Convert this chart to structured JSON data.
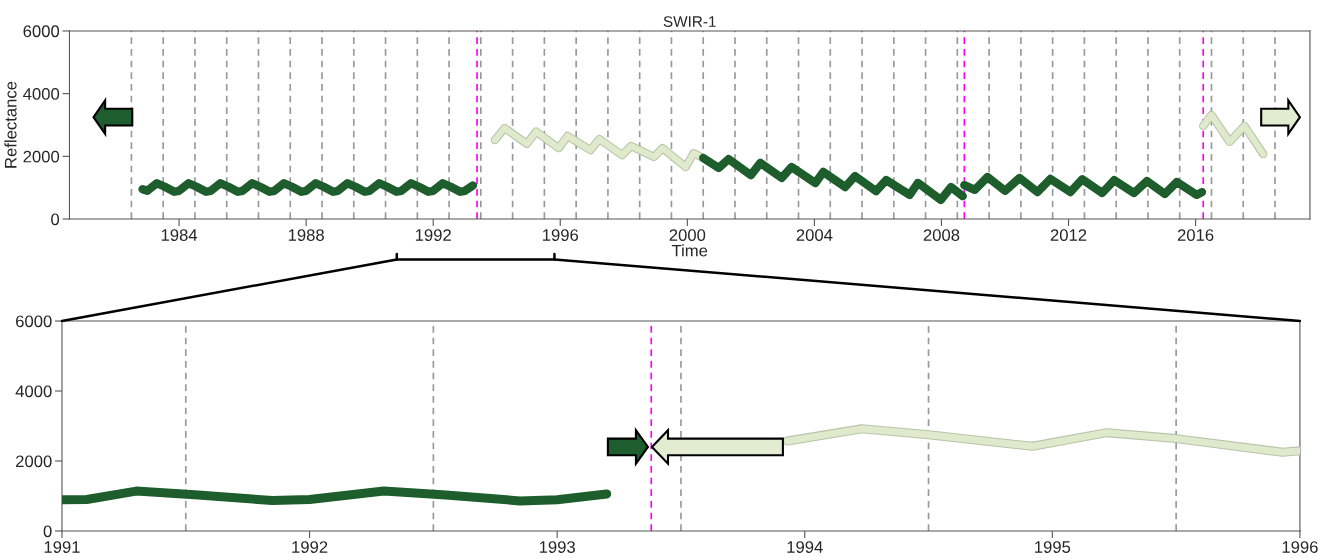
{
  "chart_data": [
    {
      "type": "line",
      "title": "SWIR-1",
      "xlabel": "Time",
      "ylabel": "Reflectance",
      "xlim": [
        1980.55,
        2019.6
      ],
      "xticks": [
        1984,
        1988,
        1992,
        1996,
        2000,
        2004,
        2008,
        2012,
        2016
      ],
      "ylim": [
        0,
        6000
      ],
      "yticks": [
        0,
        2000,
        4000,
        6000
      ],
      "grid": false,
      "legend": false,
      "marker": "none",
      "line_style": "solid",
      "series": [
        {
          "color": "#1d5e2c",
          "x": [
            1982.85,
            1983.0,
            1983.3,
            1983.55,
            1983.85,
            1984.0,
            1984.3,
            1984.55,
            1984.85,
            1985.0,
            1985.3,
            1985.55,
            1985.85,
            1986.0,
            1986.3,
            1986.55,
            1986.85,
            1987.0,
            1987.3,
            1987.55,
            1987.85,
            1988.0,
            1988.3,
            1988.55,
            1988.85,
            1989.0,
            1989.3,
            1989.55,
            1989.85,
            1990.0,
            1990.3,
            1990.55,
            1990.85,
            1991.0,
            1991.3,
            1991.55,
            1991.85,
            1992.0,
            1992.3,
            1992.55,
            1992.85,
            1993.0,
            1993.25
          ],
          "values": [
            950,
            900,
            1140,
            1030,
            870,
            900,
            1140,
            1030,
            870,
            900,
            1140,
            1030,
            870,
            900,
            1140,
            1030,
            870,
            900,
            1140,
            1030,
            870,
            900,
            1140,
            1030,
            870,
            900,
            1140,
            1030,
            870,
            900,
            1140,
            1030,
            870,
            900,
            1140,
            1030,
            870,
            900,
            1140,
            1030,
            870,
            900,
            1070
          ]
        },
        {
          "color": "#dfe9cc",
          "x": [
            1993.94,
            1994.25,
            1994.95,
            1995.24,
            1995.95,
            1996.23,
            1996.95,
            1997.23,
            1997.95,
            1998.23,
            1998.95,
            1999.22,
            1999.95,
            2000.2,
            2000.5
          ],
          "values": [
            2520,
            2900,
            2400,
            2790,
            2260,
            2650,
            2200,
            2550,
            2040,
            2330,
            1980,
            2260,
            1660,
            2100,
            1950
          ]
        },
        {
          "color": "#1d5e2c",
          "x": [
            2000.5,
            2000.99,
            2001.3,
            2002.0,
            2002.3,
            2002.97,
            2003.28,
            2004.03,
            2004.28,
            2004.97,
            2005.28,
            2005.94,
            2006.26,
            2007.0,
            2007.26,
            2007.98,
            2008.3,
            2008.67
          ],
          "values": [
            1950,
            1630,
            1910,
            1400,
            1790,
            1310,
            1660,
            1150,
            1500,
            1020,
            1370,
            890,
            1240,
            770,
            1150,
            610,
            1020,
            730
          ]
        },
        {
          "color": "#1d5e2c",
          "x": [
            2008.72,
            2009.05,
            2009.45,
            2010.0,
            2010.46,
            2011.02,
            2011.43,
            2012.06,
            2012.43,
            2013.06,
            2013.44,
            2014.06,
            2014.47,
            2015.03,
            2015.41,
            2016.04,
            2016.2
          ],
          "values": [
            1080,
            930,
            1340,
            900,
            1310,
            860,
            1280,
            860,
            1270,
            830,
            1240,
            830,
            1210,
            800,
            1180,
            770,
            860
          ]
        },
        {
          "color": "#dfe9cc",
          "x": [
            2016.24,
            2016.5,
            2017.07,
            2017.54,
            2018.13
          ],
          "values": [
            2970,
            3320,
            2460,
            2970,
            2070
          ]
        }
      ],
      "ref_lines": [
        {
          "axis": "x",
          "value": 1982.5,
          "color": "#999999",
          "line_style": "dashed"
        },
        {
          "axis": "x",
          "value": 1983.5,
          "color": "#999999",
          "line_style": "dashed"
        },
        {
          "axis": "x",
          "value": 1984.5,
          "color": "#999999",
          "line_style": "dashed"
        },
        {
          "axis": "x",
          "value": 1985.5,
          "color": "#999999",
          "line_style": "dashed"
        },
        {
          "axis": "x",
          "value": 1986.5,
          "color": "#999999",
          "line_style": "dashed"
        },
        {
          "axis": "x",
          "value": 1987.5,
          "color": "#999999",
          "line_style": "dashed"
        },
        {
          "axis": "x",
          "value": 1988.5,
          "color": "#999999",
          "line_style": "dashed"
        },
        {
          "axis": "x",
          "value": 1989.5,
          "color": "#999999",
          "line_style": "dashed"
        },
        {
          "axis": "x",
          "value": 1990.5,
          "color": "#999999",
          "line_style": "dashed"
        },
        {
          "axis": "x",
          "value": 1991.5,
          "color": "#999999",
          "line_style": "dashed"
        },
        {
          "axis": "x",
          "value": 1992.5,
          "color": "#999999",
          "line_style": "dashed"
        },
        {
          "axis": "x",
          "value": 1993.5,
          "color": "#999999",
          "line_style": "dashed"
        },
        {
          "axis": "x",
          "value": 1994.5,
          "color": "#999999",
          "line_style": "dashed"
        },
        {
          "axis": "x",
          "value": 1995.5,
          "color": "#999999",
          "line_style": "dashed"
        },
        {
          "axis": "x",
          "value": 1996.5,
          "color": "#999999",
          "line_style": "dashed"
        },
        {
          "axis": "x",
          "value": 1997.5,
          "color": "#999999",
          "line_style": "dashed"
        },
        {
          "axis": "x",
          "value": 1998.5,
          "color": "#999999",
          "line_style": "dashed"
        },
        {
          "axis": "x",
          "value": 1999.5,
          "color": "#999999",
          "line_style": "dashed"
        },
        {
          "axis": "x",
          "value": 2000.5,
          "color": "#999999",
          "line_style": "dashed"
        },
        {
          "axis": "x",
          "value": 2001.5,
          "color": "#999999",
          "line_style": "dashed"
        },
        {
          "axis": "x",
          "value": 2002.5,
          "color": "#999999",
          "line_style": "dashed"
        },
        {
          "axis": "x",
          "value": 2003.5,
          "color": "#999999",
          "line_style": "dashed"
        },
        {
          "axis": "x",
          "value": 2004.5,
          "color": "#999999",
          "line_style": "dashed"
        },
        {
          "axis": "x",
          "value": 2005.5,
          "color": "#999999",
          "line_style": "dashed"
        },
        {
          "axis": "x",
          "value": 2006.5,
          "color": "#999999",
          "line_style": "dashed"
        },
        {
          "axis": "x",
          "value": 2007.5,
          "color": "#999999",
          "line_style": "dashed"
        },
        {
          "axis": "x",
          "value": 2008.5,
          "color": "#999999",
          "line_style": "dashed"
        },
        {
          "axis": "x",
          "value": 2009.5,
          "color": "#999999",
          "line_style": "dashed"
        },
        {
          "axis": "x",
          "value": 2010.5,
          "color": "#999999",
          "line_style": "dashed"
        },
        {
          "axis": "x",
          "value": 2011.5,
          "color": "#999999",
          "line_style": "dashed"
        },
        {
          "axis": "x",
          "value": 2012.5,
          "color": "#999999",
          "line_style": "dashed"
        },
        {
          "axis": "x",
          "value": 2013.5,
          "color": "#999999",
          "line_style": "dashed"
        },
        {
          "axis": "x",
          "value": 2014.5,
          "color": "#999999",
          "line_style": "dashed"
        },
        {
          "axis": "x",
          "value": 2015.5,
          "color": "#999999",
          "line_style": "dashed"
        },
        {
          "axis": "x",
          "value": 2016.5,
          "color": "#999999",
          "line_style": "dashed"
        },
        {
          "axis": "x",
          "value": 2017.5,
          "color": "#999999",
          "line_style": "dashed"
        },
        {
          "axis": "x",
          "value": 2018.5,
          "color": "#999999",
          "line_style": "dashed"
        },
        {
          "axis": "x",
          "value": 1993.38,
          "color": "#ff00ff",
          "line_style": "dashed"
        },
        {
          "axis": "x",
          "value": 2008.72,
          "color": "#ff00ff",
          "line_style": "dashed"
        },
        {
          "axis": "x",
          "value": 2016.24,
          "color": "#ff00ff",
          "line_style": "dashed"
        }
      ]
    },
    {
      "type": "line",
      "xlim": [
        1991,
        1996
      ],
      "xticks": [
        1991,
        1992,
        1993,
        1994,
        1995,
        1996
      ],
      "ylim": [
        0,
        6000
      ],
      "yticks": [
        0,
        2000,
        4000,
        6000
      ],
      "grid": false,
      "legend": false,
      "marker": "none",
      "line_style": "solid",
      "series": [
        {
          "color": "#1d5e2c",
          "x": [
            1991.0,
            1991.1,
            1991.3,
            1991.55,
            1991.85,
            1992.0,
            1992.3,
            1992.55,
            1992.85,
            1993.0,
            1993.2
          ],
          "values": [
            890,
            900,
            1140,
            1030,
            870,
            900,
            1140,
            1030,
            860,
            890,
            1060
          ]
        },
        {
          "color": "#dfe9cc",
          "x": [
            1993.93,
            1994.23,
            1994.5,
            1994.92,
            1995.22,
            1995.5,
            1995.93,
            1996.0
          ],
          "values": [
            2570,
            2920,
            2750,
            2420,
            2810,
            2640,
            2250,
            2290
          ]
        }
      ],
      "ref_lines": [
        {
          "axis": "x",
          "value": 1991.5,
          "color": "#999999",
          "line_style": "dashed"
        },
        {
          "axis": "x",
          "value": 1992.5,
          "color": "#999999",
          "line_style": "dashed"
        },
        {
          "axis": "x",
          "value": 1993.5,
          "color": "#999999",
          "line_style": "dashed"
        },
        {
          "axis": "x",
          "value": 1994.5,
          "color": "#999999",
          "line_style": "dashed"
        },
        {
          "axis": "x",
          "value": 1995.5,
          "color": "#999999",
          "line_style": "dashed"
        },
        {
          "axis": "x",
          "value": 1993.38,
          "color": "#ff00ff",
          "line_style": "dashed"
        }
      ]
    }
  ]
}
